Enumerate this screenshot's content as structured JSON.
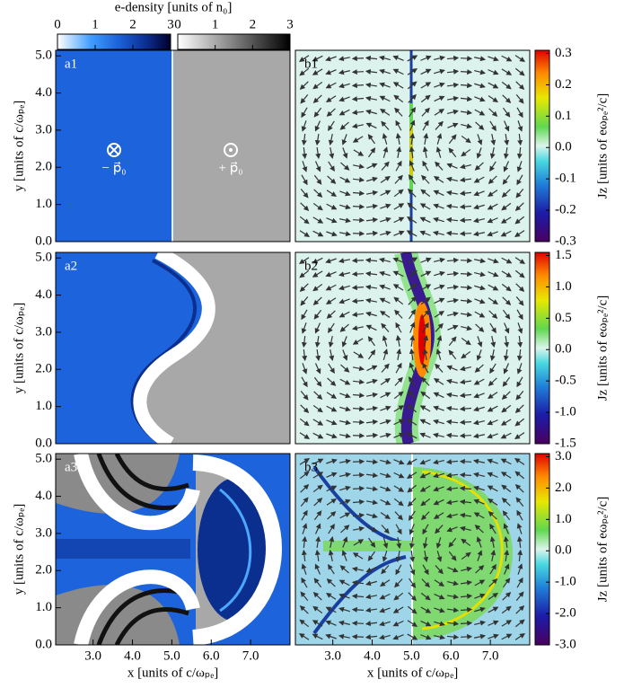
{
  "density_colorbars": {
    "title": "e-density [units of n₀]",
    "bars": [
      {
        "lim": [
          0,
          3
        ],
        "ticks": [
          0,
          1,
          2,
          3
        ]
      },
      {
        "lim": [
          0,
          3
        ],
        "ticks": [
          0,
          1,
          2,
          3
        ]
      }
    ]
  },
  "panels": [
    {
      "label": "a1",
      "ylabel": "y [units of c/ωₚₑ]",
      "ylim": [
        0,
        5.15
      ],
      "yticks": [
        {
          "value": 0,
          "label": "0.0"
        },
        {
          "value": 1,
          "label": "1.0"
        },
        {
          "value": 2,
          "label": "2.0"
        },
        {
          "value": 3,
          "label": "3.0"
        },
        {
          "value": 4,
          "label": "4.0"
        },
        {
          "value": 5,
          "label": "5.0"
        }
      ],
      "annotations": [
        "− p⃗₀",
        "+ p⃗₀"
      ]
    },
    {
      "label": "a2",
      "ylabel": "y [units of c/ωₚₑ]",
      "ylim": [
        0,
        5.15
      ],
      "yticks": [
        {
          "value": 0,
          "label": "0.0"
        },
        {
          "value": 1,
          "label": "1.0"
        },
        {
          "value": 2,
          "label": "2.0"
        },
        {
          "value": 3,
          "label": "3.0"
        },
        {
          "value": 4,
          "label": "4.0"
        },
        {
          "value": 5,
          "label": "5.0"
        }
      ]
    },
    {
      "label": "a3",
      "ylabel": "y [units of c/ωₚₑ]",
      "ylim": [
        0,
        5.15
      ],
      "yticks": [
        {
          "value": 0,
          "label": "0.0"
        },
        {
          "value": 1,
          "label": "1.0"
        },
        {
          "value": 2,
          "label": "2.0"
        },
        {
          "value": 3,
          "label": "3.0"
        },
        {
          "value": 4,
          "label": "4.0"
        },
        {
          "value": 5,
          "label": "5.0"
        }
      ],
      "xlabel": "x [units of c/ωₚₑ]",
      "xlim": [
        2.05,
        8.0
      ],
      "xticks": [
        {
          "value": 3,
          "label": "3.0"
        },
        {
          "value": 4,
          "label": "4.0"
        },
        {
          "value": 5,
          "label": "5.0"
        },
        {
          "value": 6,
          "label": "6.0"
        },
        {
          "value": 7,
          "label": "7.0"
        }
      ]
    },
    {
      "label": "b1",
      "colorbar": {
        "label": "Jz [units of eωₚₑ²/c]",
        "lim": [
          -0.3,
          0.31
        ],
        "ticks": [
          -0.3,
          -0.2,
          -0.1,
          {
            "value": 0,
            "label": "0.0"
          },
          0.1,
          0.2,
          0.3
        ]
      }
    },
    {
      "label": "b2",
      "colorbar": {
        "label": "Jz [units of eωₚₑ²/c]",
        "lim": [
          -1.5,
          1.55
        ],
        "ticks": [
          -1.5,
          {
            "value": -1,
            "label": "-1.0"
          },
          -0.5,
          {
            "value": 0,
            "label": "0.0"
          },
          0.5,
          {
            "value": 1,
            "label": "1.0"
          },
          1.5
        ]
      }
    },
    {
      "label": "b3",
      "colorbar": {
        "label": "Jz [units of eωₚₑ²/c]",
        "lim": [
          -3,
          3.1
        ],
        "ticks": [
          {
            "value": -3,
            "label": "-3.0"
          },
          {
            "value": -2,
            "label": "-2.0"
          },
          {
            "value": -1,
            "label": "-1.0"
          },
          {
            "value": 0,
            "label": "0.0"
          },
          {
            "value": 1,
            "label": "1.0"
          },
          {
            "value": 2,
            "label": "2.0"
          },
          {
            "value": 3,
            "label": "3.0"
          }
        ]
      },
      "xlabel": "x [units of c/ωₚₑ]",
      "xlim": [
        2.05,
        8.0
      ],
      "xticks": [
        {
          "value": 3,
          "label": "3.0"
        },
        {
          "value": 4,
          "label": "4.0"
        },
        {
          "value": 5,
          "label": "5.0"
        },
        {
          "value": 6,
          "label": "6.0"
        },
        {
          "value": 7,
          "label": "7.0"
        }
      ]
    }
  ]
}
